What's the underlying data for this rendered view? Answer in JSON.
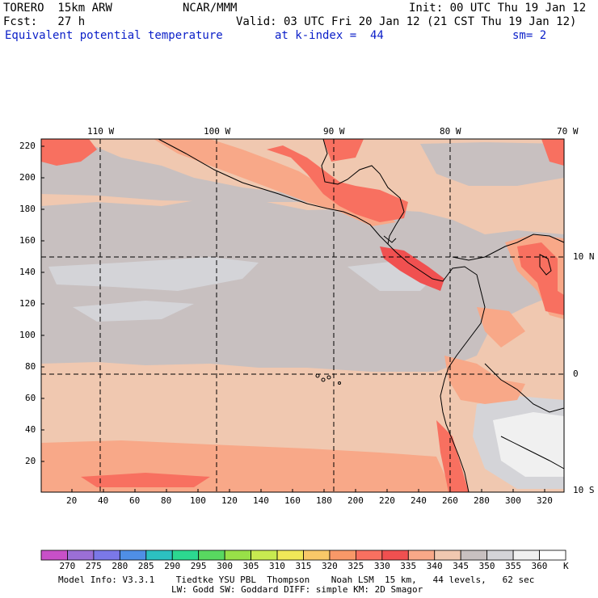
{
  "header": {
    "model_name": "TORERO  15km ARW",
    "org": "NCAR/MMM",
    "init": "Init: 00 UTC Thu 19 Jan 12",
    "fcst": "Fcst:   27 h",
    "valid": "Valid: 03 UTC Fri 20 Jan 12 (21 CST Thu 19 Jan 12)",
    "field": "Equivalent potential temperature",
    "level": "at k-index =  44",
    "smooth": "sm= 2"
  },
  "map": {
    "lon_labels": [
      "110 W",
      "100 W",
      "90 W",
      "80 W",
      "70 W"
    ],
    "lat_labels": [
      "10 N",
      "0",
      "10 S"
    ],
    "y_ticks": [
      "220",
      "200",
      "180",
      "160",
      "140",
      "120",
      "100",
      "80",
      "60",
      "40",
      "20"
    ],
    "x_ticks": [
      "20",
      "40",
      "60",
      "80",
      "100",
      "120",
      "140",
      "160",
      "180",
      "200",
      "220",
      "240",
      "260",
      "280",
      "300",
      "320"
    ]
  },
  "colorbar": {
    "labels": [
      "270",
      "275",
      "280",
      "285",
      "290",
      "295",
      "300",
      "305",
      "310",
      "315",
      "320",
      "325",
      "330",
      "335",
      "340",
      "345",
      "350",
      "355",
      "360"
    ],
    "unit": "K",
    "colors": [
      "#c850c8",
      "#9b6fd6",
      "#7b78e8",
      "#4f8fe6",
      "#2cc0c0",
      "#2cd890",
      "#58d860",
      "#98e048",
      "#c8ea50",
      "#f0e858",
      "#f8c868",
      "#f89868",
      "#f87060",
      "#f05050",
      "#f8a888",
      "#f0c8b0",
      "#c8c0c0",
      "#d4d4d8",
      "#f0f0f0",
      "#ffffff"
    ]
  },
  "footer": {
    "line1": "Model Info: V3.3.1    Tiedtke YSU PBL  Thompson    Noah LSM  15 km,   44 levels,   62 sec",
    "line2": "LW: Godd SW: Goddard DIFF: simple KM: 2D Smagor"
  }
}
